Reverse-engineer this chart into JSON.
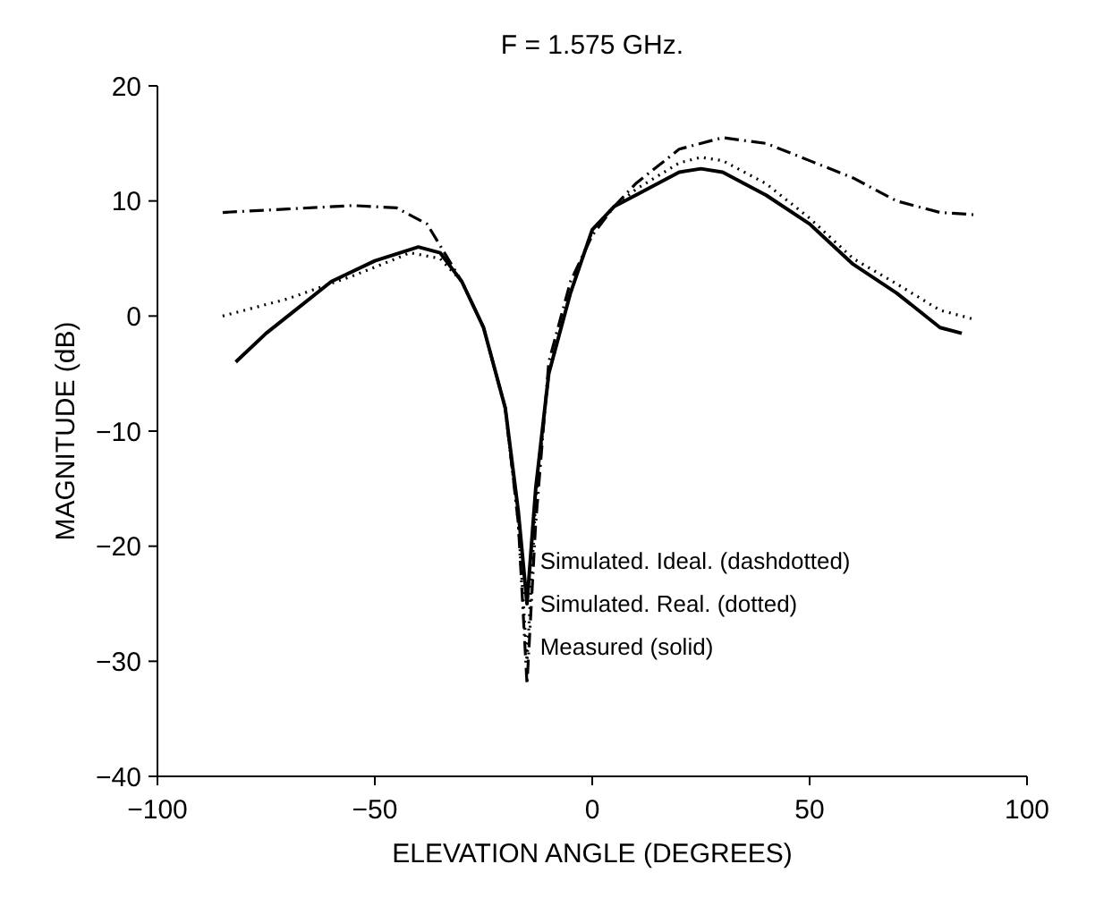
{
  "chart_data": {
    "type": "line",
    "title": "F = 1.575 GHz.",
    "xlabel": "ELEVATION ANGLE (DEGREES)",
    "ylabel": "MAGNITUDE (dB)",
    "xlim": [
      -100,
      100
    ],
    "xticks": [
      -100,
      -50,
      0,
      50,
      100
    ],
    "ylim": [
      -40,
      20
    ],
    "yticks": [
      -40,
      -30,
      -20,
      -10,
      0,
      10,
      20
    ],
    "grid": false,
    "legend": false,
    "annotations": [
      "Simulated. Ideal. (dashdotted)",
      "Simulated. Real. (dotted)",
      "Measured (solid)"
    ],
    "series": [
      {
        "color": "#000000",
        "line_style": "dashdotted",
        "x": [
          -85,
          -70,
          -55,
          -45,
          -38,
          -30,
          -25,
          -20,
          -17,
          -15,
          -13,
          -10,
          -5,
          0,
          5,
          10,
          20,
          30,
          40,
          50,
          60,
          70,
          80,
          88
        ],
        "values": [
          9,
          9.3,
          9.6,
          9.4,
          8,
          3,
          -1,
          -8,
          -18,
          -32,
          -18,
          -4,
          3,
          7,
          9.5,
          11.5,
          14.5,
          15.5,
          15,
          13.5,
          12,
          10,
          9,
          8.8
        ]
      },
      {
        "color": "#000000",
        "line_style": "dotted",
        "x": [
          -85,
          -70,
          -55,
          -45,
          -42,
          -35,
          -30,
          -25,
          -20,
          -17,
          -15,
          -13,
          -10,
          -5,
          0,
          5,
          10,
          20,
          25,
          30,
          40,
          50,
          60,
          70,
          80,
          88
        ],
        "values": [
          0,
          1.5,
          3.5,
          5,
          5.5,
          5,
          3,
          -1,
          -8,
          -18,
          -30,
          -16,
          -5,
          2,
          7.5,
          9.5,
          11,
          13.3,
          13.8,
          13.5,
          11.5,
          8.5,
          5,
          2.8,
          0.5,
          -0.3
        ]
      },
      {
        "color": "#000000",
        "line_style": "solid",
        "x": [
          -82,
          -75,
          -70,
          -60,
          -50,
          -40,
          -35,
          -30,
          -25,
          -20,
          -17,
          -15,
          -13,
          -10,
          -5,
          0,
          5,
          10,
          20,
          25,
          30,
          40,
          50,
          60,
          70,
          80,
          85
        ],
        "values": [
          -4,
          -1.5,
          0,
          3,
          4.8,
          6,
          5.5,
          3,
          -1,
          -8,
          -17,
          -25,
          -15,
          -5,
          2,
          7.5,
          9.5,
          10.5,
          12.5,
          12.8,
          12.5,
          10.5,
          8,
          4.5,
          2,
          -1,
          -1.5
        ]
      }
    ]
  }
}
